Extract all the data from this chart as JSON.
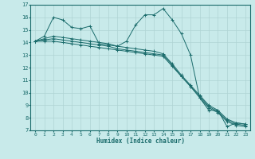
{
  "xlabel": "Humidex (Indice chaleur)",
  "background_color": "#c8eaea",
  "grid_color": "#afd4d4",
  "line_color": "#1a6b6b",
  "xlim": [
    -0.5,
    23.5
  ],
  "ylim": [
    7,
    17
  ],
  "yticks": [
    7,
    8,
    9,
    10,
    11,
    12,
    13,
    14,
    15,
    16,
    17
  ],
  "xticks": [
    0,
    1,
    2,
    3,
    4,
    5,
    6,
    7,
    8,
    9,
    10,
    11,
    12,
    13,
    14,
    15,
    16,
    17,
    18,
    19,
    20,
    21,
    22,
    23
  ],
  "series": [
    [
      14.1,
      14.5,
      16.0,
      15.8,
      15.2,
      15.1,
      15.3,
      13.9,
      13.8,
      13.7,
      14.1,
      15.4,
      16.2,
      16.2,
      16.7,
      15.8,
      14.7,
      13.0,
      9.6,
      8.6,
      8.6,
      7.3,
      7.6,
      7.5
    ],
    [
      14.1,
      14.1,
      14.1,
      14.0,
      13.9,
      13.8,
      13.7,
      13.6,
      13.5,
      13.4,
      13.3,
      13.2,
      13.1,
      13.0,
      12.9,
      12.1,
      11.3,
      10.5,
      9.7,
      8.9,
      8.5,
      7.8,
      7.5,
      7.4
    ],
    [
      14.1,
      14.2,
      14.3,
      14.2,
      14.1,
      14.0,
      13.9,
      13.8,
      13.7,
      13.5,
      13.4,
      13.3,
      13.2,
      13.1,
      13.0,
      12.2,
      11.3,
      10.5,
      9.6,
      8.8,
      8.4,
      7.7,
      7.4,
      7.3
    ],
    [
      14.1,
      14.3,
      14.5,
      14.4,
      14.3,
      14.2,
      14.1,
      14.0,
      13.9,
      13.7,
      13.6,
      13.5,
      13.4,
      13.3,
      13.1,
      12.3,
      11.4,
      10.6,
      9.8,
      9.0,
      8.6,
      7.9,
      7.6,
      7.5
    ]
  ]
}
